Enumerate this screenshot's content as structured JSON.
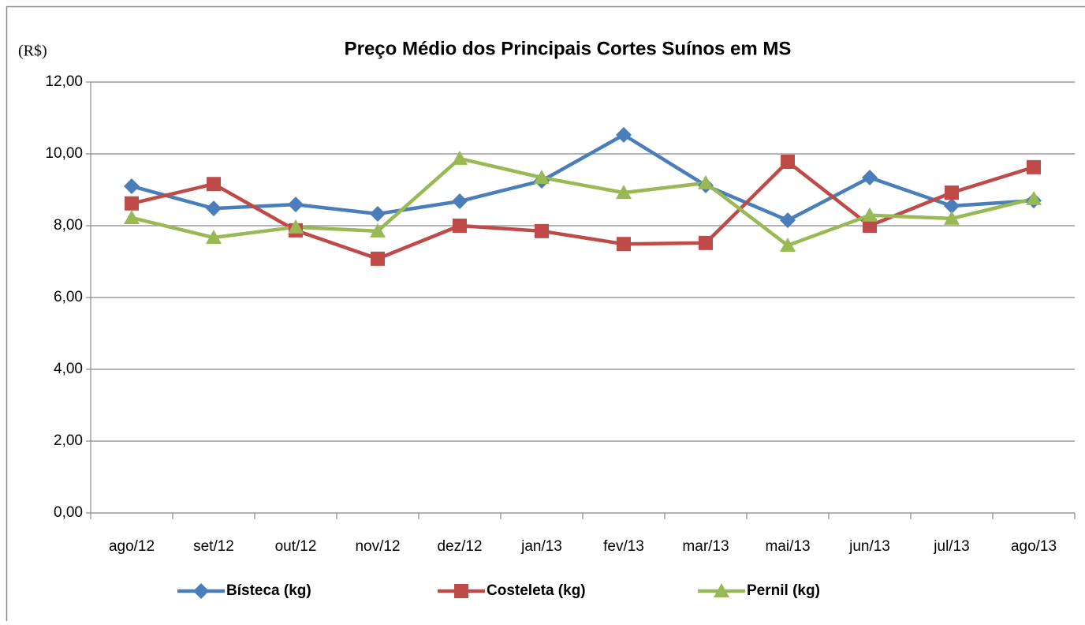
{
  "chart_data": {
    "type": "line",
    "title": "Preço Médio dos Principais Cortes Suínos em MS",
    "y_label": "(R$)",
    "categories": [
      "ago/12",
      "set/12",
      "out/12",
      "nov/12",
      "dez/12",
      "jan/13",
      "fev/13",
      "mar/13",
      "mai/13",
      "jun/13",
      "jul/13",
      "ago/13"
    ],
    "series": [
      {
        "name": "Bísteca (kg)",
        "color": "#4a7ebb",
        "marker": "diamond",
        "values": [
          9.1,
          8.48,
          8.59,
          8.33,
          8.68,
          9.25,
          10.53,
          9.12,
          8.15,
          9.34,
          8.55,
          8.7
        ]
      },
      {
        "name": "Costeleta (kg)",
        "color": "#be4b48",
        "marker": "square",
        "values": [
          8.62,
          9.16,
          7.87,
          7.08,
          8.0,
          7.85,
          7.49,
          7.52,
          9.78,
          8.0,
          8.92,
          9.63
        ]
      },
      {
        "name": "Pernil (kg)",
        "color": "#98b954",
        "marker": "triangle",
        "values": [
          8.22,
          7.67,
          7.96,
          7.85,
          9.87,
          9.34,
          8.92,
          9.19,
          7.45,
          8.29,
          8.2,
          8.75
        ]
      }
    ],
    "ylim": [
      0,
      12
    ],
    "yticks": [
      {
        "value": 0,
        "label": "0,00"
      },
      {
        "value": 2,
        "label": "2,00"
      },
      {
        "value": 4,
        "label": "4,00"
      },
      {
        "value": 6,
        "label": "6,00"
      },
      {
        "value": 8,
        "label": "8,00"
      },
      {
        "value": 10,
        "label": "10,00"
      },
      {
        "value": 12,
        "label": "12,00"
      }
    ],
    "grid": true,
    "legend": "bottom"
  }
}
